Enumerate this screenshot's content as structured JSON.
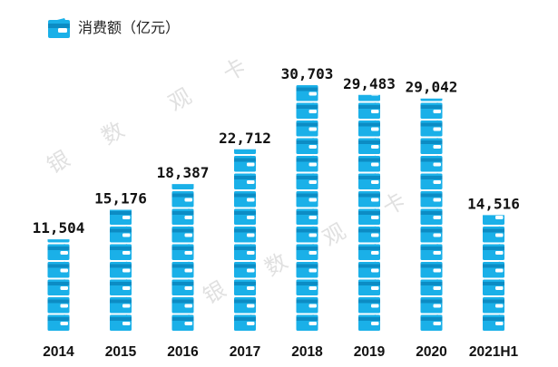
{
  "legend": {
    "icon": "wallet-icon",
    "label": "消费额（亿元）"
  },
  "colors": {
    "bar": "#1ab0e8",
    "bar_dark": "#0c8cc4",
    "label": "#111111",
    "watermark": "#c8c8c8"
  },
  "watermark": [
    "银",
    "数",
    "观",
    "卡"
  ],
  "chart_data": {
    "type": "bar",
    "title": "",
    "xlabel": "",
    "ylabel": "消费额（亿元）",
    "categories": [
      "2014",
      "2015",
      "2016",
      "2017",
      "2018",
      "2019",
      "2020",
      "2021H1"
    ],
    "values": [
      11504,
      15176,
      18387,
      22712,
      30703,
      29483,
      29042,
      14516
    ],
    "value_labels": [
      "11,504",
      "15,176",
      "18,387",
      "22,712",
      "30,703",
      "29,483",
      "29,042",
      "14,516"
    ],
    "ylim": [
      0,
      33000
    ],
    "grid": false,
    "bar_style": "stacked-wallet-icons"
  }
}
